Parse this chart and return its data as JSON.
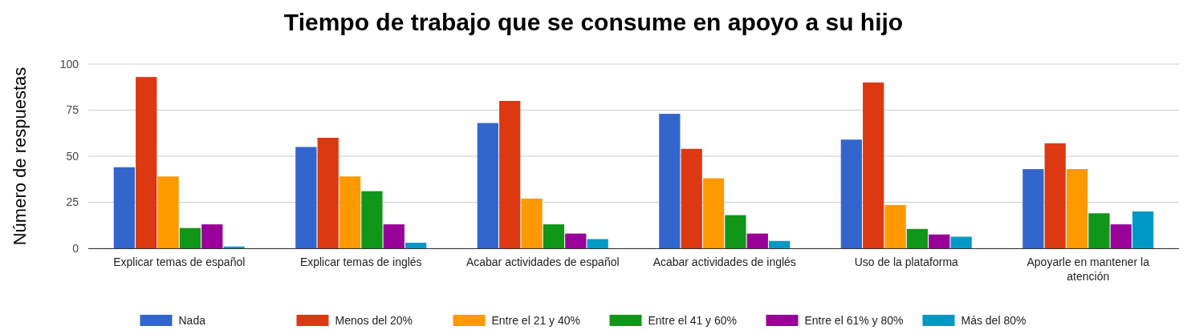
{
  "chart_data": {
    "type": "bar",
    "title": "Tiempo de trabajo que se consume en apoyo a su hijo",
    "ylabel": "Número de respuestas",
    "categories": [
      "Explicar temas de español",
      "Explicar temas de inglés",
      "Acabar actividades de español",
      "Acabar actividades de inglés",
      "Uso de la plataforma",
      "Apoyarle en mantener la atención"
    ],
    "series": [
      {
        "name": "Nada",
        "color": "#3366cc",
        "values": [
          44,
          55,
          68,
          73,
          59,
          43
        ]
      },
      {
        "name": "Menos del 20%",
        "color": "#dc3912",
        "values": [
          93,
          60,
          80,
          54,
          90,
          57
        ]
      },
      {
        "name": "Entre el 21 y 40%",
        "color": "#ff9900",
        "values": [
          39,
          39,
          27,
          38,
          23.5,
          43
        ]
      },
      {
        "name": "Entre el 41 y 60%",
        "color": "#109618",
        "values": [
          11,
          31,
          13,
          18,
          10.5,
          19
        ]
      },
      {
        "name": "Entre el 61% y 80%",
        "color": "#990099",
        "values": [
          13,
          13,
          8,
          8,
          7.5,
          13
        ]
      },
      {
        "name": "Más del 80%",
        "color": "#0099c6",
        "values": [
          1,
          3,
          5,
          4,
          6.3,
          20
        ]
      }
    ],
    "ylim": [
      0,
      100
    ],
    "yticks": [
      0,
      25,
      50,
      75,
      100
    ],
    "grid": "y",
    "legend": "bottom"
  }
}
